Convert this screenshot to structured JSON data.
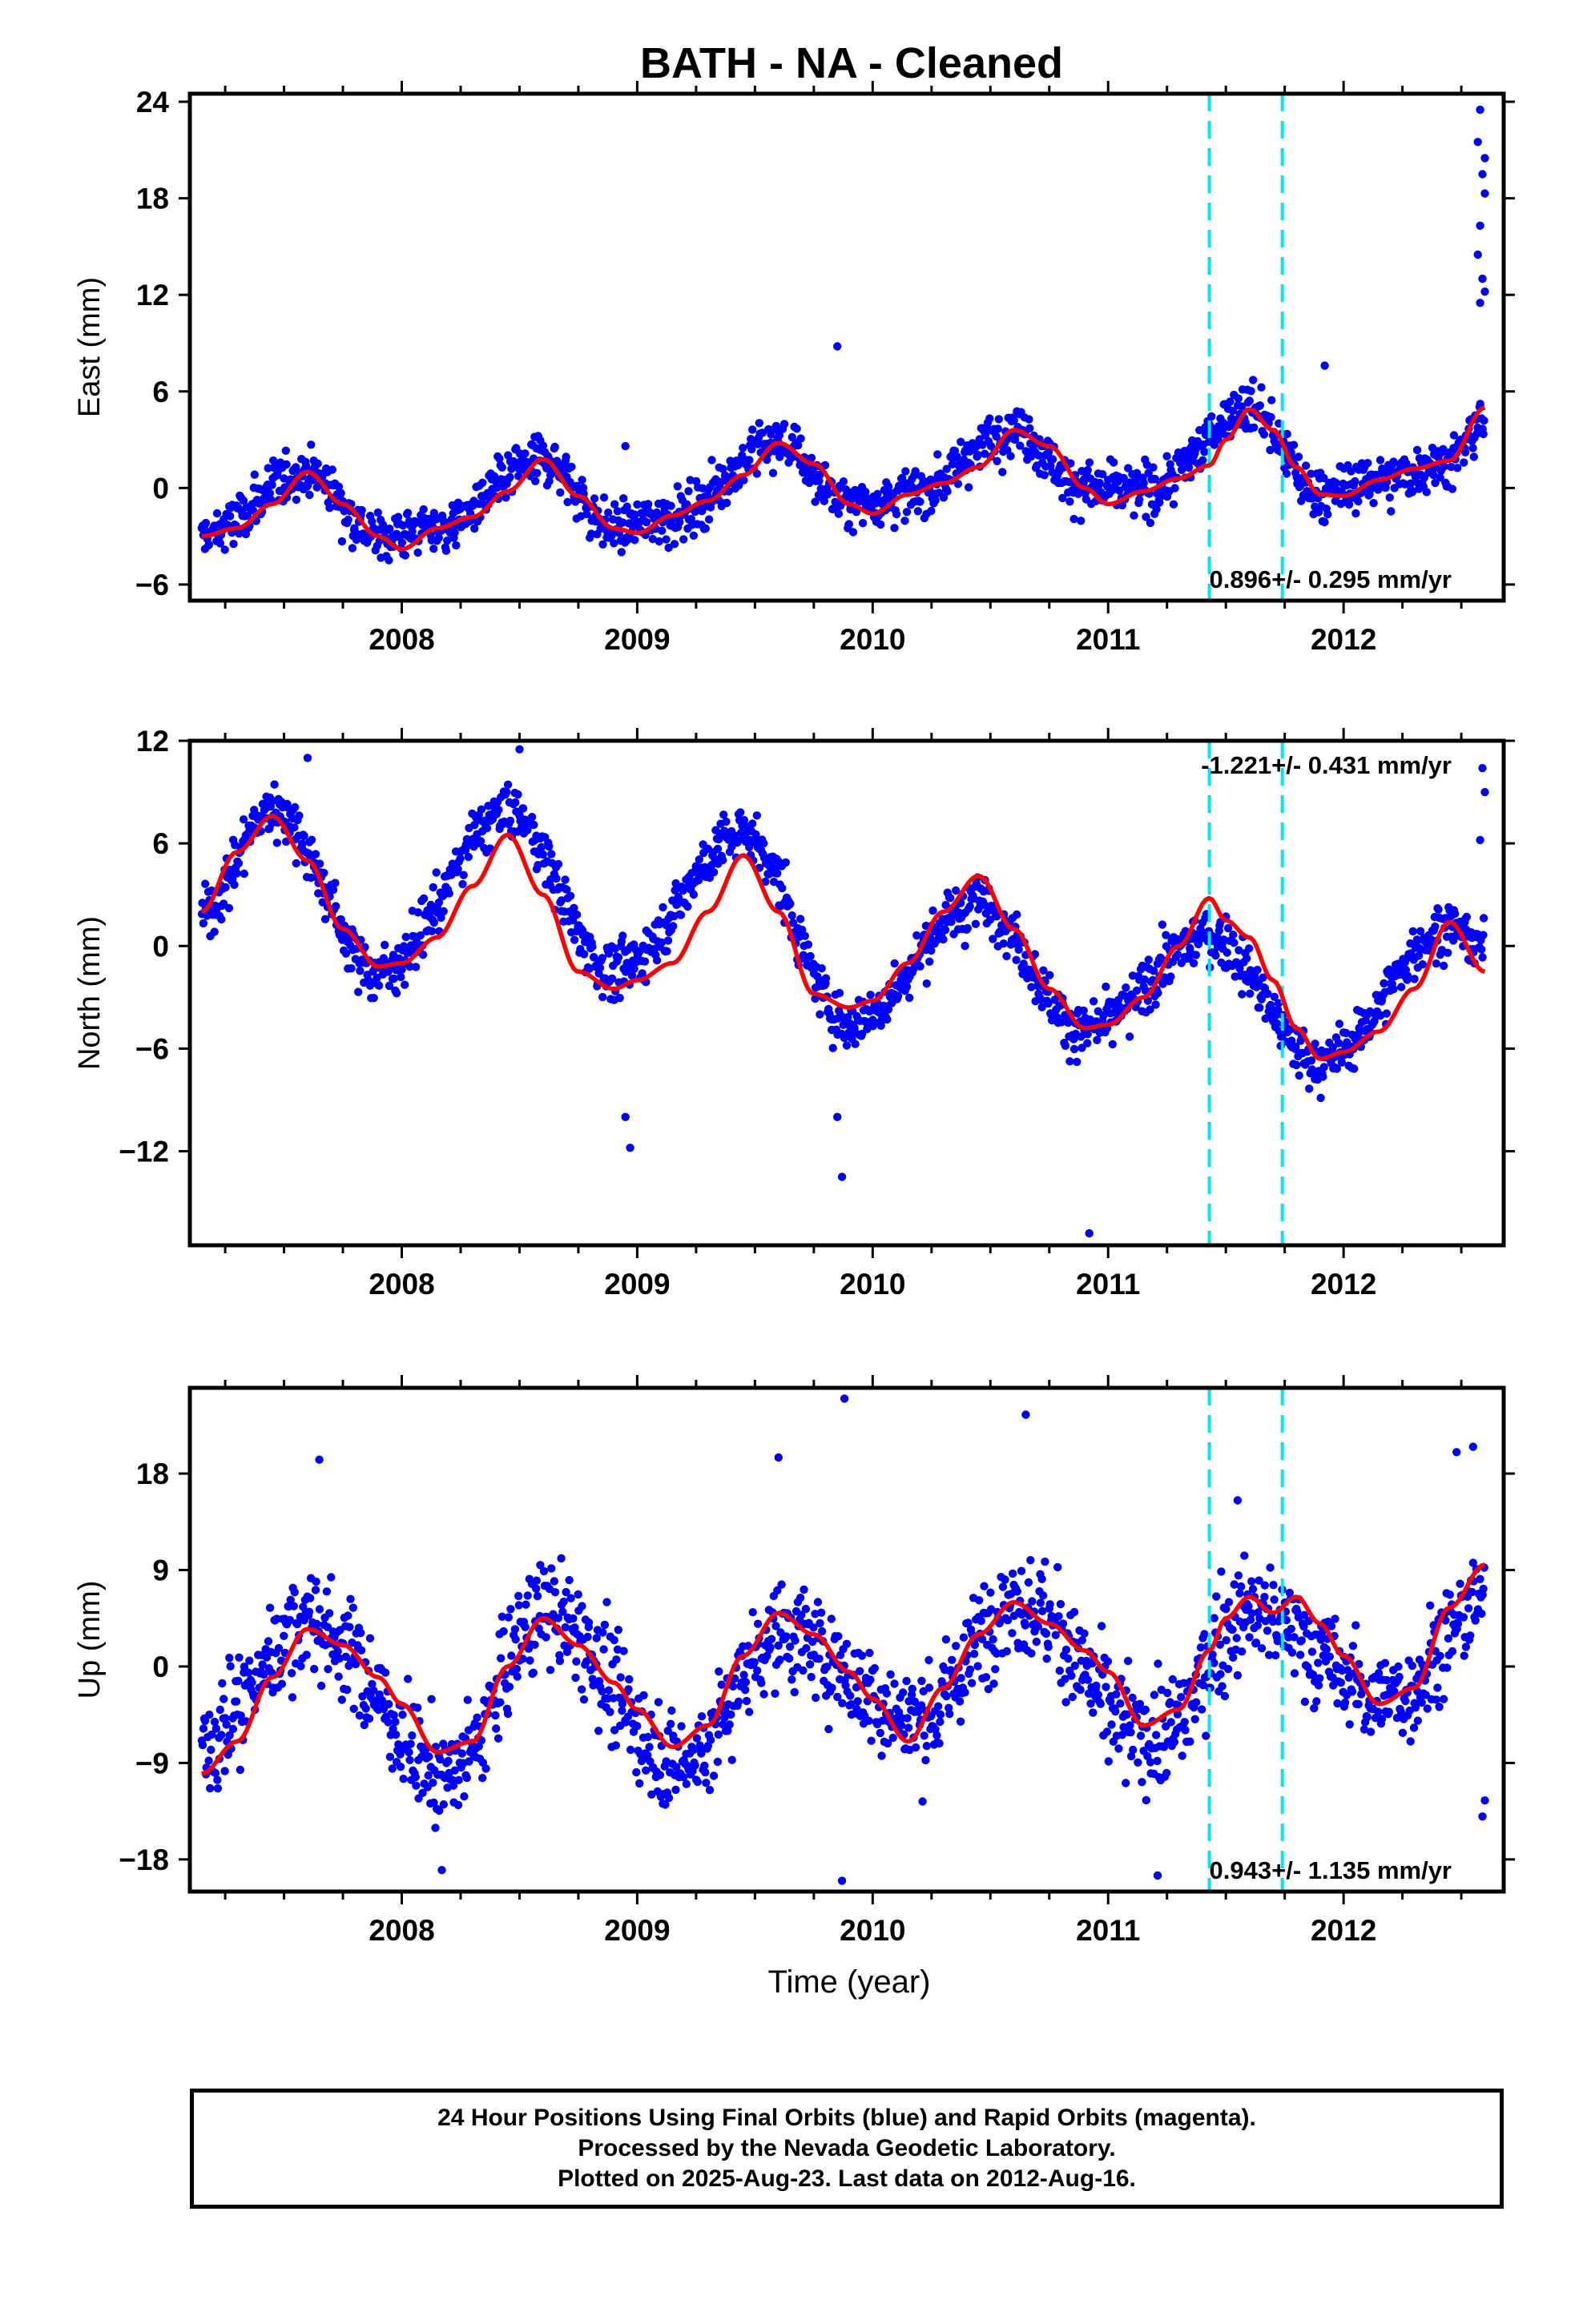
{
  "title": "BATH  - NA - Cleaned",
  "x_axis_label": "Time (year)",
  "footer": {
    "line1": "24 Hour Positions Using Final Orbits (blue) and Rapid Orbits (magenta).",
    "line2": "Processed by the Nevada Geodetic Laboratory.",
    "line3": "Plotted on 2025-Aug-23. Last data on 2012-Aug-16."
  },
  "colors": {
    "points": "#0000ff",
    "model": "#ff0000",
    "events": "#00e5ee",
    "frame": "#000000"
  },
  "chart_data": [
    {
      "type": "scatter",
      "panel": "east",
      "title": "BATH  - NA - Cleaned",
      "xlabel": "",
      "ylabel": "East (mm)",
      "xlim": [
        2007.1,
        2012.68
      ],
      "ylim": [
        -7,
        24.5
      ],
      "xticks": [
        2008,
        2009,
        2010,
        2011,
        2012
      ],
      "xtick_labels": [
        "2008",
        "2009",
        "2010",
        "2011",
        "2012"
      ],
      "yticks": [
        -6,
        0,
        6,
        12,
        18,
        24
      ],
      "ytick_labels": [
        "−6",
        "0",
        "6",
        "12",
        "18",
        "24"
      ],
      "rate_label": "0.896+/- 0.295 mm/yr",
      "rate_position": "bottom-right",
      "event_lines_x": [
        2011.43,
        2011.74
      ],
      "model_curve": {
        "x": [
          2007.15,
          2007.3,
          2007.45,
          2007.6,
          2007.75,
          2007.9,
          2008.0,
          2008.15,
          2008.3,
          2008.45,
          2008.6,
          2008.75,
          2008.9,
          2009.0,
          2009.15,
          2009.3,
          2009.45,
          2009.6,
          2009.75,
          2009.9,
          2010.0,
          2010.15,
          2010.3,
          2010.45,
          2010.6,
          2010.75,
          2010.9,
          2011.0,
          2011.15,
          2011.3,
          2011.43,
          2011.5,
          2011.6,
          2011.7,
          2011.8,
          2011.9,
          2012.0,
          2012.15,
          2012.3,
          2012.45,
          2012.6
        ],
        "y": [
          -3.0,
          -2.5,
          -1.0,
          1.0,
          -1.0,
          -3.0,
          -3.8,
          -2.5,
          -1.8,
          -0.2,
          1.8,
          -0.5,
          -2.5,
          -2.8,
          -1.7,
          -0.8,
          0.8,
          2.8,
          1.5,
          -1.0,
          -1.6,
          -0.4,
          0.3,
          1.3,
          3.6,
          2.6,
          0.0,
          -1.0,
          -0.2,
          0.6,
          1.4,
          3.0,
          4.9,
          3.6,
          1.3,
          -0.4,
          -0.5,
          0.5,
          1.2,
          1.7,
          5.0
        ]
      },
      "scatter_envelope": {
        "x": [
          2007.15,
          2007.6,
          2007.9,
          2008.15,
          2008.6,
          2008.9,
          2009.15,
          2009.6,
          2009.9,
          2010.15,
          2010.6,
          2010.9,
          2011.15,
          2011.6,
          2011.9,
          2012.15,
          2012.45,
          2012.6
        ],
        "y": [
          -3.0,
          1.0,
          -3.0,
          -2.5,
          1.8,
          -2.5,
          -1.7,
          2.8,
          -1.0,
          -0.4,
          3.6,
          0.0,
          -0.2,
          4.9,
          -0.4,
          0.5,
          1.7,
          4.0
        ],
        "scatter_sd_mm": 1.3
      },
      "outliers": [
        [
          2009.85,
          8.8
        ],
        [
          2011.92,
          7.6
        ],
        [
          2008.95,
          2.6
        ],
        [
          2012.58,
          23.5
        ],
        [
          2012.57,
          21.5
        ],
        [
          2012.6,
          20.5
        ],
        [
          2012.59,
          19.5
        ],
        [
          2012.6,
          18.3
        ],
        [
          2012.58,
          16.3
        ],
        [
          2012.57,
          14.5
        ],
        [
          2012.59,
          13.0
        ],
        [
          2012.58,
          11.5
        ],
        [
          2012.6,
          12.2
        ]
      ]
    },
    {
      "type": "scatter",
      "panel": "north",
      "xlabel": "",
      "ylabel": "North (mm)",
      "xlim": [
        2007.1,
        2012.68
      ],
      "ylim": [
        -17.5,
        12
      ],
      "xticks": [
        2008,
        2009,
        2010,
        2011,
        2012
      ],
      "xtick_labels": [
        "2008",
        "2009",
        "2010",
        "2011",
        "2012"
      ],
      "yticks": [
        -12,
        -6,
        0,
        6,
        12
      ],
      "ytick_labels": [
        "−12",
        "−6",
        "0",
        "6",
        "12"
      ],
      "rate_label": "-1.221+/- 0.431 mm/yr",
      "rate_position": "top-right",
      "event_lines_x": [
        2011.43,
        2011.74
      ],
      "model_curve": {
        "x": [
          2007.15,
          2007.3,
          2007.45,
          2007.6,
          2007.75,
          2007.9,
          2008.0,
          2008.15,
          2008.3,
          2008.45,
          2008.6,
          2008.75,
          2008.9,
          2009.0,
          2009.15,
          2009.3,
          2009.45,
          2009.6,
          2009.75,
          2009.9,
          2010.0,
          2010.15,
          2010.3,
          2010.45,
          2010.6,
          2010.75,
          2010.9,
          2011.0,
          2011.15,
          2011.3,
          2011.43,
          2011.5,
          2011.6,
          2011.7,
          2011.8,
          2011.9,
          2012.0,
          2012.15,
          2012.3,
          2012.45,
          2012.6
        ],
        "y": [
          2.0,
          5.5,
          7.6,
          5.0,
          1.0,
          -1.2,
          -1.0,
          0.5,
          3.5,
          6.5,
          3.0,
          -1.5,
          -2.5,
          -2.0,
          -1.0,
          2.0,
          5.3,
          2.0,
          -2.8,
          -3.6,
          -3.2,
          -1.0,
          2.0,
          4.1,
          1.0,
          -2.5,
          -4.8,
          -4.6,
          -3.0,
          0.0,
          2.8,
          1.5,
          0.5,
          -2.0,
          -4.8,
          -6.6,
          -6.2,
          -5.0,
          -2.5,
          1.4,
          -1.5
        ]
      },
      "scatter_envelope": {
        "x": [
          2007.15,
          2007.45,
          2007.9,
          2008.45,
          2008.9,
          2009.45,
          2009.9,
          2010.45,
          2010.9,
          2011.43,
          2011.9,
          2012.45,
          2012.6
        ],
        "y": [
          2.0,
          8.0,
          -1.5,
          7.8,
          -1.5,
          6.5,
          -4.5,
          2.5,
          -5.0,
          0.5,
          -6.8,
          1.0,
          0.0
        ],
        "scatter_sd_mm": 1.3
      },
      "outliers": [
        [
          2008.95,
          -10.0
        ],
        [
          2008.97,
          -11.8
        ],
        [
          2009.85,
          -10.0
        ],
        [
          2009.87,
          -13.5
        ],
        [
          2010.92,
          -16.8
        ],
        [
          2007.6,
          11.0
        ],
        [
          2008.5,
          11.5
        ],
        [
          2012.59,
          10.4
        ],
        [
          2012.6,
          9.0
        ],
        [
          2012.58,
          6.2
        ]
      ]
    },
    {
      "type": "scatter",
      "panel": "up",
      "xlabel": "Time (year)",
      "ylabel": "Up (mm)",
      "xlim": [
        2007.1,
        2012.68
      ],
      "ylim": [
        -21,
        26
      ],
      "xticks": [
        2008,
        2009,
        2010,
        2011,
        2012
      ],
      "xtick_labels": [
        "2008",
        "2009",
        "2010",
        "2011",
        "2012"
      ],
      "yticks": [
        -18,
        -9,
        0,
        9,
        18
      ],
      "ytick_labels": [
        "−18",
        "−9",
        "0",
        "9",
        "18"
      ],
      "rate_label": "0.943+/- 1.135 mm/yr",
      "rate_position": "bottom-right",
      "event_lines_x": [
        2011.43,
        2011.74
      ],
      "model_curve": {
        "x": [
          2007.15,
          2007.3,
          2007.45,
          2007.6,
          2007.75,
          2007.9,
          2008.0,
          2008.15,
          2008.3,
          2008.45,
          2008.6,
          2008.75,
          2008.9,
          2009.0,
          2009.15,
          2009.3,
          2009.45,
          2009.6,
          2009.75,
          2009.9,
          2010.0,
          2010.15,
          2010.3,
          2010.45,
          2010.6,
          2010.75,
          2010.9,
          2011.0,
          2011.15,
          2011.3,
          2011.43,
          2011.5,
          2011.6,
          2011.7,
          2011.8,
          2011.9,
          2012.0,
          2012.15,
          2012.3,
          2012.45,
          2012.6
        ],
        "y": [
          -10.0,
          -7.0,
          -1.0,
          3.5,
          2.0,
          -1.0,
          -3.5,
          -8.0,
          -7.0,
          0.0,
          4.5,
          2.0,
          -1.5,
          -4.0,
          -7.5,
          -5.5,
          1.0,
          5.0,
          3.0,
          -0.5,
          -3.0,
          -7.0,
          -2.0,
          3.0,
          6.0,
          4.0,
          1.5,
          -0.5,
          -5.5,
          -4.0,
          1.5,
          4.5,
          6.5,
          5.0,
          6.5,
          4.0,
          1.0,
          -3.5,
          -2.0,
          5.5,
          9.5
        ]
      },
      "scatter_envelope": {
        "x": [
          2007.15,
          2007.6,
          2008.2,
          2008.6,
          2009.2,
          2009.6,
          2010.2,
          2010.6,
          2011.2,
          2011.6,
          2012.2,
          2012.6
        ],
        "y": [
          -7.0,
          4.0,
          -10.0,
          5.0,
          -9.0,
          3.0,
          -5.0,
          6.0,
          -7.0,
          5.0,
          -3.0,
          6.0
        ],
        "scatter_sd_mm": 4.0
      },
      "outliers": [
        [
          2009.88,
          25.0
        ],
        [
          2009.87,
          -20.0
        ],
        [
          2010.65,
          23.5
        ],
        [
          2009.6,
          19.5
        ],
        [
          2007.65,
          19.3
        ],
        [
          2011.55,
          15.5
        ],
        [
          2012.48,
          20.0
        ],
        [
          2012.55,
          20.5
        ],
        [
          2011.21,
          -19.5
        ],
        [
          2008.17,
          -19.0
        ],
        [
          2012.59,
          -14.0
        ],
        [
          2012.6,
          -12.5
        ]
      ]
    }
  ]
}
